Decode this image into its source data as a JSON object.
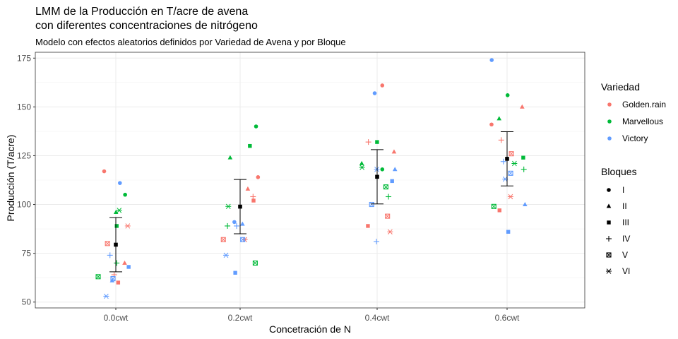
{
  "chart_data": {
    "type": "scatter",
    "title_line1": "LMM de la Producción en T/acre de avena",
    "title_line2": "con diferentes concentraciones de nitrógeno",
    "subtitle": "Modelo con efectos aleatorios definidos por Variedad de Avena y por Bloque",
    "xlabel": "Concetración de N",
    "ylabel": "Producción (T/acre)",
    "categories": [
      "0.0cwt",
      "0.2cwt",
      "0.4cwt",
      "0.6cwt"
    ],
    "ylim": [
      47,
      178
    ],
    "yticks": [
      50,
      75,
      100,
      125,
      150,
      175
    ],
    "grid": true,
    "colors": {
      "Golden.rain": "#F8766D",
      "Marvellous": "#00BA38",
      "Victory": "#619CFF"
    },
    "legend_variedad": {
      "title": "Variedad",
      "items": [
        {
          "label": "Golden.rain",
          "color": "#F8766D"
        },
        {
          "label": "Marvellous",
          "color": "#00BA38"
        },
        {
          "label": "Victory",
          "color": "#619CFF"
        }
      ]
    },
    "legend_bloques": {
      "title": "Bloques",
      "items": [
        {
          "label": "I",
          "shape": "circle"
        },
        {
          "label": "II",
          "shape": "triangle"
        },
        {
          "label": "III",
          "shape": "square"
        },
        {
          "label": "IV",
          "shape": "plus"
        },
        {
          "label": "V",
          "shape": "square-x"
        },
        {
          "label": "VI",
          "shape": "asterisk"
        }
      ]
    },
    "summary": [
      {
        "category": "0.0cwt",
        "mean": 79.4,
        "lower": 65.5,
        "upper": 93.3
      },
      {
        "category": "0.2cwt",
        "mean": 98.9,
        "lower": 85.0,
        "upper": 112.8
      },
      {
        "category": "0.4cwt",
        "mean": 114.2,
        "lower": 100.3,
        "upper": 128.1
      },
      {
        "category": "0.6cwt",
        "mean": 123.4,
        "lower": 109.5,
        "upper": 137.3
      }
    ],
    "points": [
      {
        "nitro": "0.0cwt",
        "variety": "Golden.rain",
        "block": "I",
        "y": 117
      },
      {
        "nitro": "0.0cwt",
        "variety": "Golden.rain",
        "block": "II",
        "y": 70
      },
      {
        "nitro": "0.0cwt",
        "variety": "Golden.rain",
        "block": "III",
        "y": 60
      },
      {
        "nitro": "0.0cwt",
        "variety": "Golden.rain",
        "block": "IV",
        "y": 64
      },
      {
        "nitro": "0.0cwt",
        "variety": "Golden.rain",
        "block": "V",
        "y": 80
      },
      {
        "nitro": "0.0cwt",
        "variety": "Golden.rain",
        "block": "VI",
        "y": 89
      },
      {
        "nitro": "0.0cwt",
        "variety": "Marvellous",
        "block": "I",
        "y": 105
      },
      {
        "nitro": "0.0cwt",
        "variety": "Marvellous",
        "block": "II",
        "y": 96
      },
      {
        "nitro": "0.0cwt",
        "variety": "Marvellous",
        "block": "III",
        "y": 89
      },
      {
        "nitro": "0.0cwt",
        "variety": "Marvellous",
        "block": "IV",
        "y": 70
      },
      {
        "nitro": "0.0cwt",
        "variety": "Marvellous",
        "block": "V",
        "y": 63
      },
      {
        "nitro": "0.0cwt",
        "variety": "Marvellous",
        "block": "VI",
        "y": 97
      },
      {
        "nitro": "0.0cwt",
        "variety": "Victory",
        "block": "I",
        "y": 111
      },
      {
        "nitro": "0.0cwt",
        "variety": "Victory",
        "block": "II",
        "y": 61
      },
      {
        "nitro": "0.0cwt",
        "variety": "Victory",
        "block": "III",
        "y": 68
      },
      {
        "nitro": "0.0cwt",
        "variety": "Victory",
        "block": "IV",
        "y": 74
      },
      {
        "nitro": "0.0cwt",
        "variety": "Victory",
        "block": "V",
        "y": 62
      },
      {
        "nitro": "0.0cwt",
        "variety": "Victory",
        "block": "VI",
        "y": 53
      },
      {
        "nitro": "0.2cwt",
        "variety": "Golden.rain",
        "block": "I",
        "y": 114
      },
      {
        "nitro": "0.2cwt",
        "variety": "Golden.rain",
        "block": "II",
        "y": 108
      },
      {
        "nitro": "0.2cwt",
        "variety": "Golden.rain",
        "block": "III",
        "y": 102
      },
      {
        "nitro": "0.2cwt",
        "variety": "Golden.rain",
        "block": "IV",
        "y": 104
      },
      {
        "nitro": "0.2cwt",
        "variety": "Golden.rain",
        "block": "V",
        "y": 82
      },
      {
        "nitro": "0.2cwt",
        "variety": "Golden.rain",
        "block": "VI",
        "y": 82
      },
      {
        "nitro": "0.2cwt",
        "variety": "Marvellous",
        "block": "I",
        "y": 140
      },
      {
        "nitro": "0.2cwt",
        "variety": "Marvellous",
        "block": "II",
        "y": 124
      },
      {
        "nitro": "0.2cwt",
        "variety": "Marvellous",
        "block": "III",
        "y": 130
      },
      {
        "nitro": "0.2cwt",
        "variety": "Marvellous",
        "block": "IV",
        "y": 89
      },
      {
        "nitro": "0.2cwt",
        "variety": "Marvellous",
        "block": "V",
        "y": 70
      },
      {
        "nitro": "0.2cwt",
        "variety": "Marvellous",
        "block": "VI",
        "y": 99
      },
      {
        "nitro": "0.2cwt",
        "variety": "Victory",
        "block": "I",
        "y": 91
      },
      {
        "nitro": "0.2cwt",
        "variety": "Victory",
        "block": "II",
        "y": 90
      },
      {
        "nitro": "0.2cwt",
        "variety": "Victory",
        "block": "III",
        "y": 65
      },
      {
        "nitro": "0.2cwt",
        "variety": "Victory",
        "block": "IV",
        "y": 89
      },
      {
        "nitro": "0.2cwt",
        "variety": "Victory",
        "block": "V",
        "y": 82
      },
      {
        "nitro": "0.2cwt",
        "variety": "Victory",
        "block": "VI",
        "y": 74
      },
      {
        "nitro": "0.4cwt",
        "variety": "Golden.rain",
        "block": "I",
        "y": 161
      },
      {
        "nitro": "0.4cwt",
        "variety": "Golden.rain",
        "block": "II",
        "y": 127
      },
      {
        "nitro": "0.4cwt",
        "variety": "Golden.rain",
        "block": "III",
        "y": 89
      },
      {
        "nitro": "0.4cwt",
        "variety": "Golden.rain",
        "block": "IV",
        "y": 132
      },
      {
        "nitro": "0.4cwt",
        "variety": "Golden.rain",
        "block": "V",
        "y": 94
      },
      {
        "nitro": "0.4cwt",
        "variety": "Golden.rain",
        "block": "VI",
        "y": 86
      },
      {
        "nitro": "0.4cwt",
        "variety": "Marvellous",
        "block": "I",
        "y": 118
      },
      {
        "nitro": "0.4cwt",
        "variety": "Marvellous",
        "block": "II",
        "y": 121
      },
      {
        "nitro": "0.4cwt",
        "variety": "Marvellous",
        "block": "III",
        "y": 132
      },
      {
        "nitro": "0.4cwt",
        "variety": "Marvellous",
        "block": "IV",
        "y": 104
      },
      {
        "nitro": "0.4cwt",
        "variety": "Marvellous",
        "block": "V",
        "y": 109
      },
      {
        "nitro": "0.4cwt",
        "variety": "Marvellous",
        "block": "VI",
        "y": 119
      },
      {
        "nitro": "0.4cwt",
        "variety": "Victory",
        "block": "I",
        "y": 157
      },
      {
        "nitro": "0.4cwt",
        "variety": "Victory",
        "block": "II",
        "y": 118
      },
      {
        "nitro": "0.4cwt",
        "variety": "Victory",
        "block": "III",
        "y": 112
      },
      {
        "nitro": "0.4cwt",
        "variety": "Victory",
        "block": "IV",
        "y": 81
      },
      {
        "nitro": "0.4cwt",
        "variety": "Victory",
        "block": "V",
        "y": 100
      },
      {
        "nitro": "0.4cwt",
        "variety": "Victory",
        "block": "VI",
        "y": 118
      },
      {
        "nitro": "0.6cwt",
        "variety": "Golden.rain",
        "block": "I",
        "y": 141
      },
      {
        "nitro": "0.6cwt",
        "variety": "Golden.rain",
        "block": "II",
        "y": 150
      },
      {
        "nitro": "0.6cwt",
        "variety": "Golden.rain",
        "block": "III",
        "y": 97
      },
      {
        "nitro": "0.6cwt",
        "variety": "Golden.rain",
        "block": "IV",
        "y": 133
      },
      {
        "nitro": "0.6cwt",
        "variety": "Golden.rain",
        "block": "V",
        "y": 126
      },
      {
        "nitro": "0.6cwt",
        "variety": "Golden.rain",
        "block": "VI",
        "y": 104
      },
      {
        "nitro": "0.6cwt",
        "variety": "Marvellous",
        "block": "I",
        "y": 156
      },
      {
        "nitro": "0.6cwt",
        "variety": "Marvellous",
        "block": "II",
        "y": 144
      },
      {
        "nitro": "0.6cwt",
        "variety": "Marvellous",
        "block": "III",
        "y": 124
      },
      {
        "nitro": "0.6cwt",
        "variety": "Marvellous",
        "block": "IV",
        "y": 118
      },
      {
        "nitro": "0.6cwt",
        "variety": "Marvellous",
        "block": "V",
        "y": 99
      },
      {
        "nitro": "0.6cwt",
        "variety": "Marvellous",
        "block": "VI",
        "y": 121
      },
      {
        "nitro": "0.6cwt",
        "variety": "Victory",
        "block": "I",
        "y": 174
      },
      {
        "nitro": "0.6cwt",
        "variety": "Victory",
        "block": "II",
        "y": 100
      },
      {
        "nitro": "0.6cwt",
        "variety": "Victory",
        "block": "III",
        "y": 86
      },
      {
        "nitro": "0.6cwt",
        "variety": "Victory",
        "block": "IV",
        "y": 122
      },
      {
        "nitro": "0.6cwt",
        "variety": "Victory",
        "block": "V",
        "y": 116
      },
      {
        "nitro": "0.6cwt",
        "variety": "Victory",
        "block": "VI",
        "y": 113
      }
    ]
  }
}
